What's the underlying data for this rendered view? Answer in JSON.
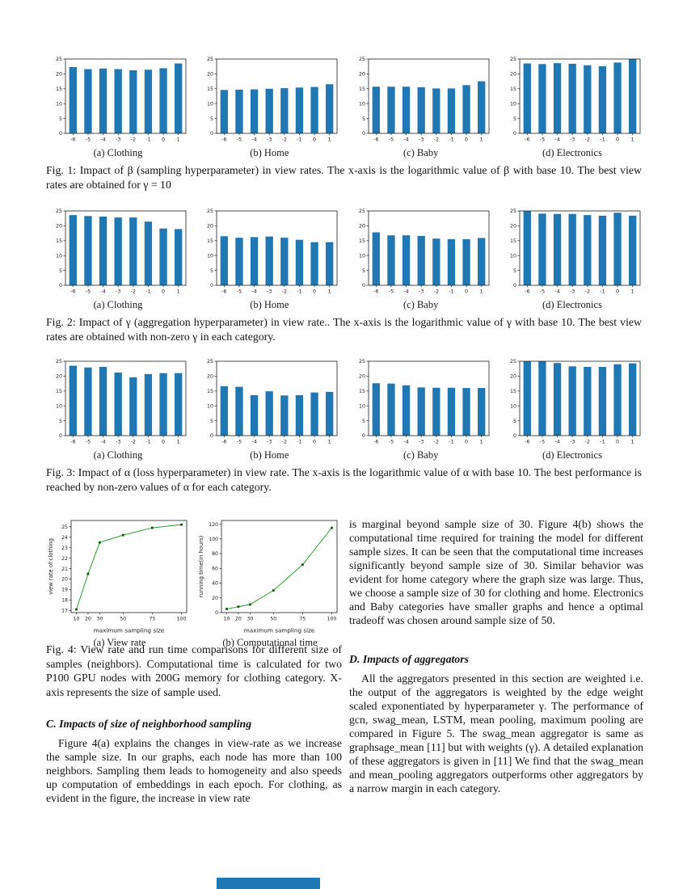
{
  "colors": {
    "bar_blue": "#1f77b4",
    "line_green": "#2ca02c",
    "marker_green": "#0d5d0d",
    "spine": "#222222"
  },
  "figures": {
    "fig1": {
      "caption": "Fig. 1: Impact of β (sampling hyperparameter) in view rates. The x-axis is the logarithmic value of β with base 10. The best view rates are obtained for γ = 10"
    },
    "fig2": {
      "caption": "Fig. 2: Impact of γ (aggregation hyperparameter) in view rate.. The x-axis is the logarithmic value of γ with base 10. The best view rates are obtained with non-zero γ in each category."
    },
    "fig3": {
      "caption": "Fig. 3: Impact of α (loss hyperparameter) in view rate. The x-axis is the logarithmic value of α with base 10. The best performance is reached by non-zero values of α for each category."
    },
    "fig4": {
      "caption": "Fig. 4: View rate and run time comparisons for different size of samples (neighbors). Computational time is calculated for two P100 GPU nodes with 200G memory for clothing category. X-axis represents the size of sample used."
    }
  },
  "sections": {
    "c_heading": "C. Impacts of size of neighborhood sampling",
    "c_para": "Figure 4(a) explains the changes in view-rate as we increase the sample size. In our graphs, each node has more than 100 neighbors. Sampling them leads to homogeneity and also speeds up computation of embeddings in each epoch. For clothing, as evident in the figure, the increase in view rate",
    "right_para": "is marginal beyond sample size of 30. Figure 4(b) shows the computational time required for training the model for different sample sizes. It can be seen that the computational time increases significantly beyond sample size of 30. Similar behavior was evident for home category where the graph size was large. Thus, we choose a sample size of 30 for clothing and home. Electronics and Baby categories have smaller graphs and hence a optimal tradeoff was chosen around sample size of 50.",
    "d_heading": "D. Impacts of aggregators",
    "d_para": "All the aggregators presented in this section are weighted i.e. the output of the aggregators is weighted by the edge weight scaled exponentiated by hyperparameter γ. The performance of gcn, swag_mean, LSTM, mean pooling, maximum pooling are compared in Figure 5. The swag_mean aggregator is same as graphsage_mean [11] but with weights (γ). A detailed explanation of these aggregators is given in [11] We find that the swag_mean and mean_pooling aggregators outperforms other aggregators by a narrow margin in each category."
  },
  "chart_data": [
    {
      "type": "bar",
      "title": "(a) Clothing",
      "categories": [
        "-6",
        "-5",
        "-4",
        "-3",
        "-2",
        "-1",
        "0",
        "1"
      ],
      "values": [
        22.3,
        21.6,
        21.8,
        21.6,
        21.2,
        21.4,
        21.9,
        23.5
      ],
      "ylim": [
        0,
        25
      ],
      "yticks": [
        0,
        5,
        10,
        15,
        20,
        25
      ]
    },
    {
      "type": "bar",
      "title": "(b) Home",
      "categories": [
        "-6",
        "-5",
        "-4",
        "-3",
        "-2",
        "-1",
        "0",
        "1"
      ],
      "values": [
        14.6,
        14.7,
        14.8,
        15.0,
        15.2,
        15.4,
        15.6,
        16.5
      ],
      "ylim": [
        0,
        25
      ],
      "yticks": [
        0,
        5,
        10,
        15,
        20,
        25
      ]
    },
    {
      "type": "bar",
      "title": "(c) Baby",
      "categories": [
        "-6",
        "-5",
        "-4",
        "-3",
        "-2",
        "-1",
        "0",
        "1"
      ],
      "values": [
        15.7,
        15.7,
        15.7,
        15.5,
        15.1,
        15.1,
        16.2,
        17.5
      ],
      "ylim": [
        0,
        25
      ],
      "yticks": [
        0,
        5,
        10,
        15,
        20,
        25
      ]
    },
    {
      "type": "bar",
      "title": "(d) Electronics",
      "categories": [
        "-6",
        "-5",
        "-4",
        "-3",
        "-2",
        "-1",
        "0",
        "1"
      ],
      "values": [
        23.5,
        23.3,
        23.6,
        23.4,
        22.9,
        22.6,
        23.8,
        25.2
      ],
      "ylim": [
        0,
        25
      ],
      "yticks": [
        0,
        5,
        10,
        15,
        20,
        25
      ]
    },
    {
      "type": "bar",
      "title": "(a) Clothing",
      "categories": [
        "-6",
        "-5",
        "-4",
        "-3",
        "-2",
        "-1",
        "0",
        "1"
      ],
      "values": [
        23.6,
        23.3,
        23.1,
        22.8,
        22.8,
        21.4,
        19.1,
        18.9
      ],
      "ylim": [
        0,
        25
      ],
      "yticks": [
        0,
        5,
        10,
        15,
        20,
        25
      ]
    },
    {
      "type": "bar",
      "title": "(b) Home",
      "categories": [
        "-6",
        "-5",
        "-4",
        "-3",
        "-2",
        "-1",
        "0",
        "1"
      ],
      "values": [
        16.5,
        16.0,
        16.2,
        16.4,
        16.0,
        15.3,
        14.5,
        14.5
      ],
      "ylim": [
        0,
        25
      ],
      "yticks": [
        0,
        5,
        10,
        15,
        20,
        25
      ]
    },
    {
      "type": "bar",
      "title": "(c) Baby",
      "categories": [
        "-6",
        "-5",
        "-4",
        "-3",
        "-2",
        "-1",
        "0",
        "1"
      ],
      "values": [
        17.8,
        16.8,
        16.8,
        16.6,
        15.7,
        15.5,
        15.5,
        15.9
      ],
      "ylim": [
        0,
        25
      ],
      "yticks": [
        0,
        5,
        10,
        15,
        20,
        25
      ]
    },
    {
      "type": "bar",
      "title": "(d) Electronics",
      "categories": [
        "-6",
        "-5",
        "-4",
        "-3",
        "-2",
        "-1",
        "0",
        "1"
      ],
      "values": [
        25.3,
        24.1,
        24.0,
        24.0,
        23.6,
        23.4,
        24.4,
        23.4
      ],
      "ylim": [
        0,
        25
      ],
      "yticks": [
        0,
        5,
        10,
        15,
        20,
        25
      ]
    },
    {
      "type": "bar",
      "title": "(a) Clothing",
      "categories": [
        "-6",
        "-5",
        "-4",
        "-3",
        "-2",
        "-1",
        "0",
        "1"
      ],
      "values": [
        23.5,
        22.9,
        23.1,
        21.2,
        19.6,
        20.7,
        21.0,
        21.0
      ],
      "ylim": [
        0,
        25
      ],
      "yticks": [
        0,
        5,
        10,
        15,
        20,
        25
      ]
    },
    {
      "type": "bar",
      "title": "(b) Home",
      "categories": [
        "-6",
        "-5",
        "-4",
        "-3",
        "-2",
        "-1",
        "0",
        "1"
      ],
      "values": [
        16.6,
        16.4,
        13.6,
        14.9,
        13.5,
        13.6,
        14.5,
        14.7
      ],
      "ylim": [
        0,
        25
      ],
      "yticks": [
        0,
        5,
        10,
        15,
        20,
        25
      ]
    },
    {
      "type": "bar",
      "title": "(c) Baby",
      "categories": [
        "-6",
        "-5",
        "-4",
        "-3",
        "-2",
        "-1",
        "0",
        "1"
      ],
      "values": [
        17.6,
        17.5,
        16.9,
        16.2,
        16.1,
        16.1,
        16.0,
        16.0
      ],
      "ylim": [
        0,
        25
      ],
      "yticks": [
        0,
        5,
        10,
        15,
        20,
        25
      ]
    },
    {
      "type": "bar",
      "title": "(d) Electronics",
      "categories": [
        "-6",
        "-5",
        "-4",
        "-3",
        "-2",
        "-1",
        "0",
        "1"
      ],
      "values": [
        25.3,
        25.1,
        24.4,
        23.3,
        23.1,
        23.1,
        24.0,
        24.3
      ],
      "ylim": [
        0,
        25
      ],
      "yticks": [
        0,
        5,
        10,
        15,
        20,
        25
      ]
    },
    {
      "type": "line",
      "title": "(a) View rate",
      "x": [
        10,
        20,
        30,
        50,
        75,
        100
      ],
      "values": [
        17.1,
        20.5,
        23.5,
        24.2,
        24.9,
        25.2
      ],
      "xlabel": "maximum sampling size",
      "ylabel": "view rate of clothing",
      "ylim": [
        16.8,
        25.6
      ],
      "yticks": [
        17,
        18,
        19,
        20,
        21,
        22,
        23,
        24,
        25
      ],
      "xticks": [
        10,
        20,
        30,
        50,
        75,
        100
      ]
    },
    {
      "type": "line",
      "title": "(b) Computational time",
      "x": [
        10,
        20,
        30,
        50,
        75,
        100
      ],
      "values": [
        5,
        8,
        11,
        30,
        65,
        115
      ],
      "xlabel": "maximum sampling size",
      "ylabel": "running time(in hours)",
      "ylim": [
        0,
        125
      ],
      "yticks": [
        0,
        20,
        40,
        60,
        80,
        100,
        120
      ],
      "xticks": [
        10,
        20,
        30,
        50,
        75,
        100
      ]
    }
  ]
}
